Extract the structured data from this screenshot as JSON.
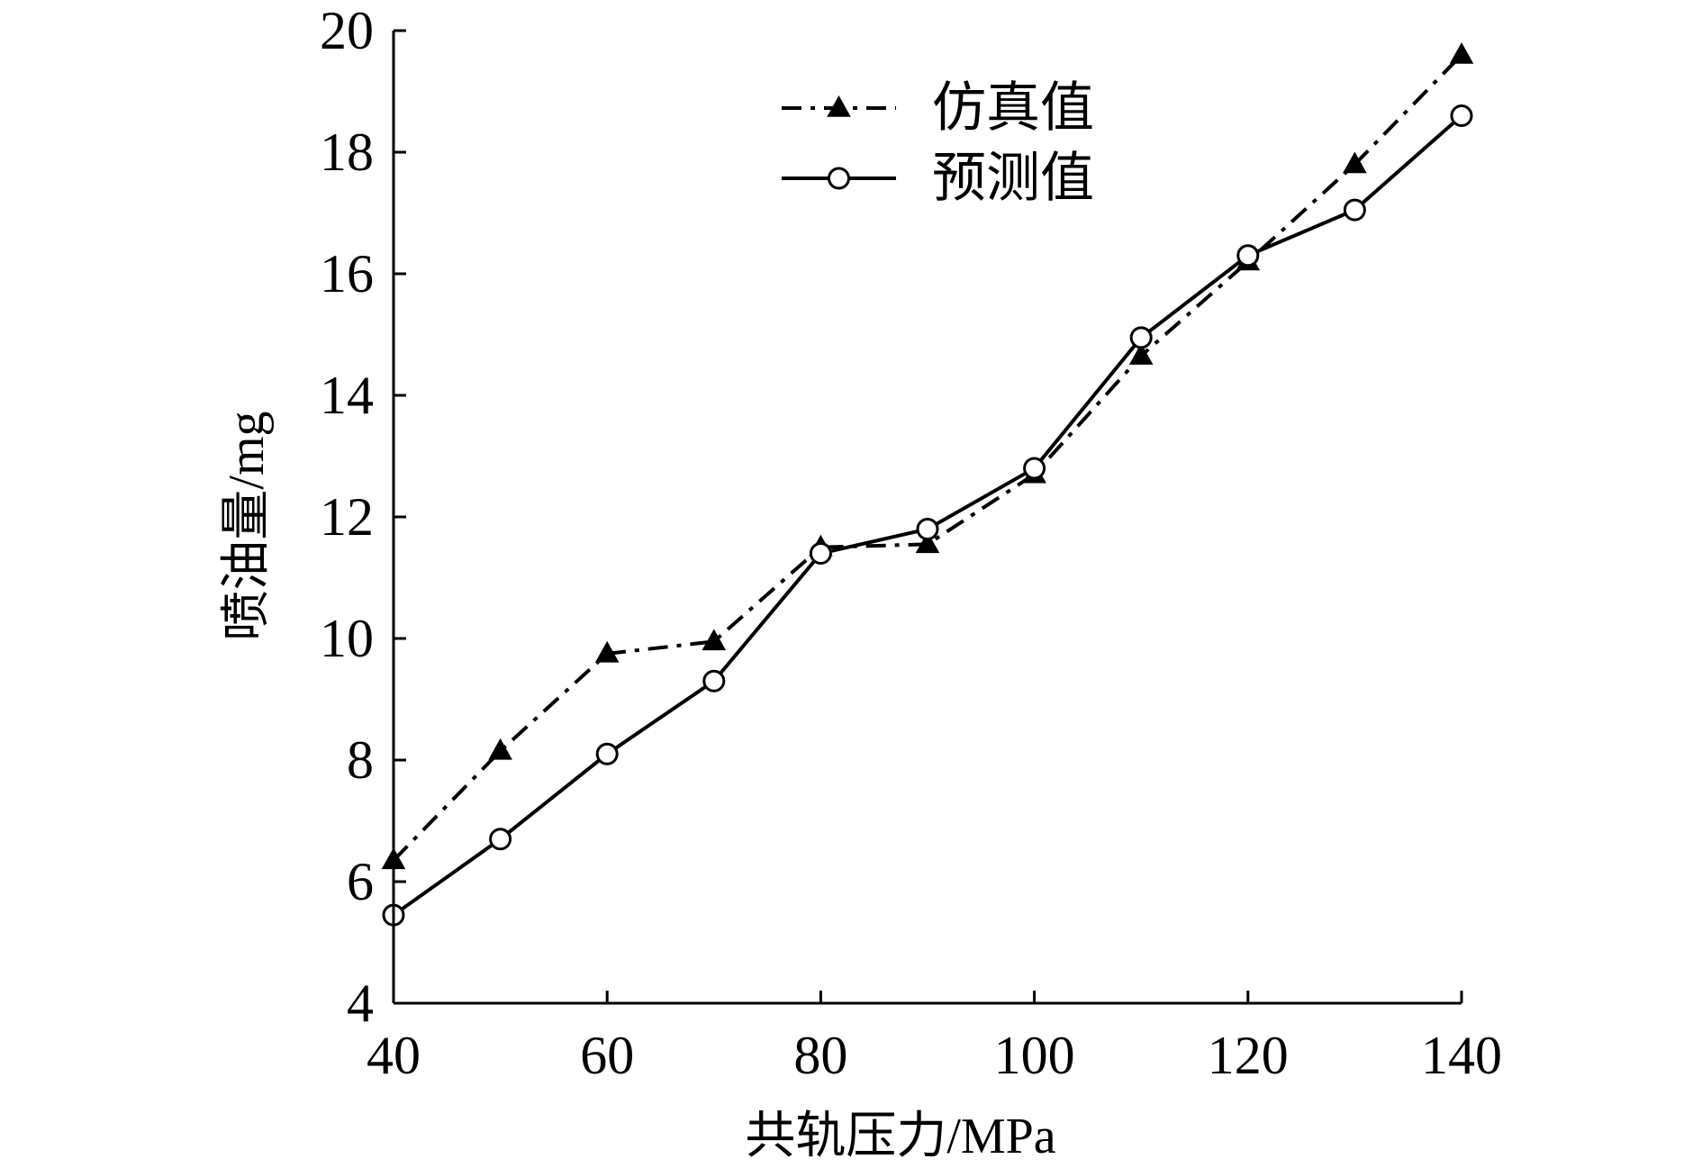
{
  "chart_data": {
    "type": "line",
    "title": "",
    "xlabel": "共轨压力/MPa",
    "ylabel": "喷油量/mg",
    "xlim": [
      40,
      140
    ],
    "ylim": [
      4,
      20
    ],
    "xticks": [
      40,
      60,
      80,
      100,
      120,
      140
    ],
    "yticks": [
      4,
      6,
      8,
      10,
      12,
      14,
      16,
      18,
      20
    ],
    "grid": false,
    "legend_position": "top-center",
    "x": [
      40,
      50,
      60,
      70,
      80,
      90,
      100,
      110,
      120,
      130,
      140
    ],
    "series": [
      {
        "name": "仿真值",
        "style": "dash-dot",
        "marker": "filled-triangle",
        "values": [
          6.35,
          8.15,
          9.75,
          9.95,
          11.5,
          11.55,
          12.7,
          14.65,
          16.2,
          17.8,
          19.6
        ]
      },
      {
        "name": "预测值",
        "style": "solid",
        "marker": "open-circle",
        "values": [
          5.45,
          6.7,
          8.1,
          9.3,
          11.4,
          11.8,
          12.8,
          14.95,
          16.3,
          17.05,
          18.6
        ]
      }
    ],
    "colors": {
      "line": "#000000",
      "background": "#ffffff"
    }
  }
}
